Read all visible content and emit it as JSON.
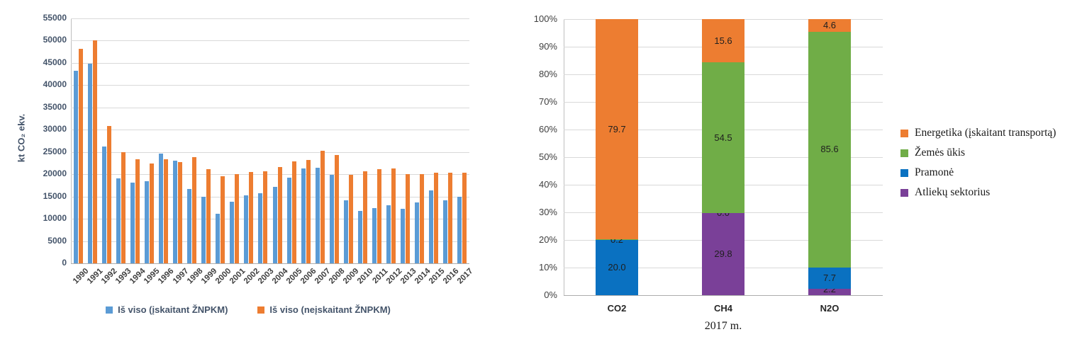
{
  "colors": {
    "left_blue": "#5b9bd5",
    "orange": "#ed7d31",
    "right_blue": "#0a71c1",
    "green": "#70ad47",
    "purple": "#7a4098"
  },
  "chart_data": [
    {
      "type": "bar",
      "title": "",
      "ylabel": "kt CO₂ ekv.",
      "xlabel": "",
      "ylim": [
        0,
        55000
      ],
      "ytick_step": 5000,
      "yticks": [
        0,
        5000,
        10000,
        15000,
        20000,
        25000,
        30000,
        35000,
        40000,
        45000,
        50000,
        55000
      ],
      "grid": true,
      "legend_position": "bottom",
      "categories": [
        "1990",
        "1991",
        "1992",
        "1993",
        "1994",
        "1995",
        "1996",
        "1997",
        "1998",
        "1999",
        "2000",
        "2001",
        "2002",
        "2003",
        "2004",
        "2005",
        "2006",
        "2007",
        "2008",
        "2009",
        "2010",
        "2011",
        "2012",
        "2013",
        "2014",
        "2015",
        "2016",
        "2017"
      ],
      "series": [
        {
          "name": "Iš viso (įskaitant ŽNPKM)",
          "color": "#5b9bd5",
          "values": [
            43200,
            44900,
            26200,
            19000,
            18200,
            18400,
            24600,
            23000,
            16700,
            14900,
            11100,
            13800,
            15300,
            15700,
            17200,
            19200,
            21300,
            21500,
            19900,
            14200,
            11700,
            12400,
            13000,
            12200,
            13600,
            16400,
            14100,
            15000
          ]
        },
        {
          "name": "Iš viso (neįskaitant ŽNPKM)",
          "color": "#ed7d31",
          "values": [
            48100,
            50100,
            30800,
            24900,
            23300,
            22400,
            23300,
            22800,
            23900,
            21100,
            19500,
            20100,
            20500,
            20700,
            21600,
            22900,
            23200,
            25300,
            24300,
            19900,
            20700,
            21200,
            21300,
            20000,
            20000,
            20300,
            20300,
            20400
          ]
        }
      ]
    },
    {
      "type": "stacked-bar-100",
      "title": "",
      "xlabel": "2017 m.",
      "ylim": [
        0,
        100
      ],
      "ytick_step": 10,
      "yticks": [
        "0%",
        "10%",
        "20%",
        "30%",
        "40%",
        "50%",
        "60%",
        "70%",
        "80%",
        "90%",
        "100%"
      ],
      "grid": true,
      "legend_position": "right",
      "categories": [
        "CO2",
        "CH4",
        "N2O"
      ],
      "series": [
        {
          "name": "Atliekų sektorius",
          "color": "#7a4098",
          "values": [
            0.0,
            29.8,
            2.2
          ]
        },
        {
          "name": "Pramonė",
          "color": "#0a71c1",
          "values": [
            20.0,
            0.0,
            7.7
          ]
        },
        {
          "name": "Žemės ūkis",
          "color": "#70ad47",
          "values": [
            0.2,
            54.5,
            85.6
          ]
        },
        {
          "name": "Energetika (įskaitant transportą)",
          "color": "#ed7d31",
          "values": [
            79.7,
            15.6,
            4.6
          ]
        }
      ],
      "data_labels": {
        "CO2": {
          "Atliekų sektorius": "0.0",
          "Pramonė": "20.0",
          "Žemės ūkis": "0.2",
          "Energetika (įskaitant transportą)": "79.7"
        },
        "CH4": {
          "Atliekų sektorius": "29.8",
          "Pramonė": "0.0",
          "Žemės ūkis": "54.5",
          "Energetika (įskaitant transportą)": "15.6"
        },
        "N2O": {
          "Atliekų sektorius": "2.2",
          "Pramonė": "7.7",
          "Žemės ūkis": "85.6",
          "Energetika (įskaitant transportą)": "4.6"
        }
      },
      "legend_order": [
        "Energetika (įskaitant transportą)",
        "Žemės ūkis",
        "Pramonė",
        "Atliekų sektorius"
      ]
    }
  ]
}
